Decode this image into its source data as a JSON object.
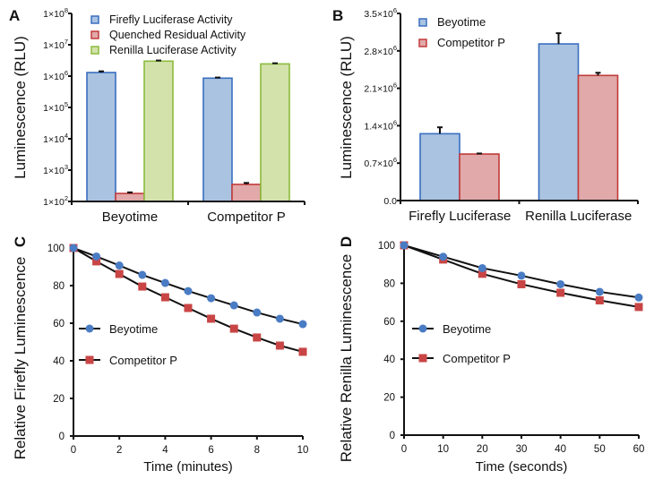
{
  "figure": {
    "colors": {
      "blue_fill": "#A9C3E1",
      "blue_stroke": "#3A6EC0",
      "red_fill": "#E1A9A9",
      "red_stroke": "#C23A3A",
      "green_fill": "#D3E2AB",
      "green_stroke": "#8CBB3D",
      "marker_blue": "#4A7CC4",
      "marker_red": "#C94545"
    }
  },
  "chart_data": [
    {
      "panel": "A",
      "type": "bar",
      "scale": "log",
      "ylabel": "Luminescence (RLU)",
      "xlabel": "",
      "ylim": [
        100,
        100000000
      ],
      "yticks": [
        {
          "value": 100,
          "base": "1×10",
          "exp": "2"
        },
        {
          "value": 1000,
          "base": "1×10",
          "exp": "3"
        },
        {
          "value": 10000,
          "base": "1×10",
          "exp": "4"
        },
        {
          "value": 100000,
          "base": "1×10",
          "exp": "5"
        },
        {
          "value": 1000000,
          "base": "1×10",
          "exp": "6"
        },
        {
          "value": 10000000,
          "base": "1×10",
          "exp": "7"
        },
        {
          "value": 100000000,
          "base": "1×10",
          "exp": "8"
        }
      ],
      "categories": [
        "Beyotime",
        "Competitor P"
      ],
      "legend_position": "top-left",
      "series": [
        {
          "name": "Firefly Luciferase Activity",
          "color": "blue",
          "values": [
            1300000,
            860000
          ],
          "errors": [
            120000,
            40000
          ]
        },
        {
          "name": "Quenched Residual Activity",
          "color": "red",
          "values": [
            180,
            350
          ],
          "errors": [
            15,
            40
          ]
        },
        {
          "name": "Renilla Luciferase Activity",
          "color": "green",
          "values": [
            3000000,
            2450000
          ],
          "errors": [
            150000,
            120000
          ]
        }
      ]
    },
    {
      "panel": "B",
      "type": "bar",
      "scale": "linear",
      "ylabel": "Luminescence (RLU)",
      "xlabel": "",
      "ylim": [
        0,
        3500000
      ],
      "yticks": [
        {
          "value": 0,
          "base": "0.0",
          "exp": ""
        },
        {
          "value": 700000,
          "base": "0.7×10",
          "exp": "6"
        },
        {
          "value": 1400000,
          "base": "1.4×10",
          "exp": "6"
        },
        {
          "value": 2100000,
          "base": "2.1×10",
          "exp": "6"
        },
        {
          "value": 2800000,
          "base": "2.8×10",
          "exp": "6"
        },
        {
          "value": 3500000,
          "base": "3.5×10",
          "exp": "6"
        }
      ],
      "categories": [
        "Firefly Luciferase",
        "Renilla Luciferase"
      ],
      "legend_position": "top-left",
      "series": [
        {
          "name": "Beyotime",
          "color": "blue",
          "values": [
            1250000,
            2930000
          ],
          "errors": [
            120000,
            200000
          ]
        },
        {
          "name": "Competitor P",
          "color": "red",
          "values": [
            870000,
            2340000
          ],
          "errors": [
            10000,
            50000
          ]
        }
      ]
    },
    {
      "panel": "C",
      "type": "line",
      "ylabel": "Relative Firefly Luminescence",
      "xlabel": "Time (minutes)",
      "xlim": [
        0,
        10
      ],
      "ylim": [
        0,
        100
      ],
      "xticks": [
        0,
        2,
        4,
        6,
        8,
        10
      ],
      "yticks": [
        0,
        20,
        40,
        60,
        80,
        100
      ],
      "legend_position": "middle-left",
      "x": [
        0,
        1,
        2,
        3,
        4,
        5,
        6,
        7,
        8,
        9,
        10
      ],
      "series": [
        {
          "name": "Beyotime",
          "marker": "circle",
          "color": "marker_blue",
          "values": [
            100,
            95.5,
            90.7,
            85.7,
            81.4,
            77.1,
            73.3,
            69.5,
            65.7,
            62.4,
            59.5
          ]
        },
        {
          "name": "Competitor P",
          "marker": "square",
          "color": "marker_red",
          "values": [
            100,
            92.9,
            86.2,
            79.5,
            73.8,
            68.1,
            62.4,
            57.1,
            52.4,
            48.1,
            44.8
          ]
        }
      ]
    },
    {
      "panel": "D",
      "type": "line",
      "ylabel": "Relative Renilla Luminescence",
      "xlabel": "Time (seconds)",
      "xlim": [
        0,
        60
      ],
      "ylim": [
        0,
        100
      ],
      "xticks": [
        0,
        10,
        20,
        30,
        40,
        50,
        60
      ],
      "yticks": [
        0,
        20,
        40,
        60,
        80,
        100
      ],
      "legend_position": "middle-left",
      "x": [
        0,
        10,
        20,
        30,
        40,
        50,
        60
      ],
      "series": [
        {
          "name": "Beyotime",
          "marker": "circle",
          "color": "marker_blue",
          "values": [
            100,
            94,
            88,
            84,
            79.5,
            75.5,
            72.5
          ]
        },
        {
          "name": "Competitor P",
          "marker": "square",
          "color": "marker_red",
          "values": [
            100,
            92.5,
            85,
            79.5,
            75,
            71,
            67.5
          ]
        }
      ]
    }
  ]
}
